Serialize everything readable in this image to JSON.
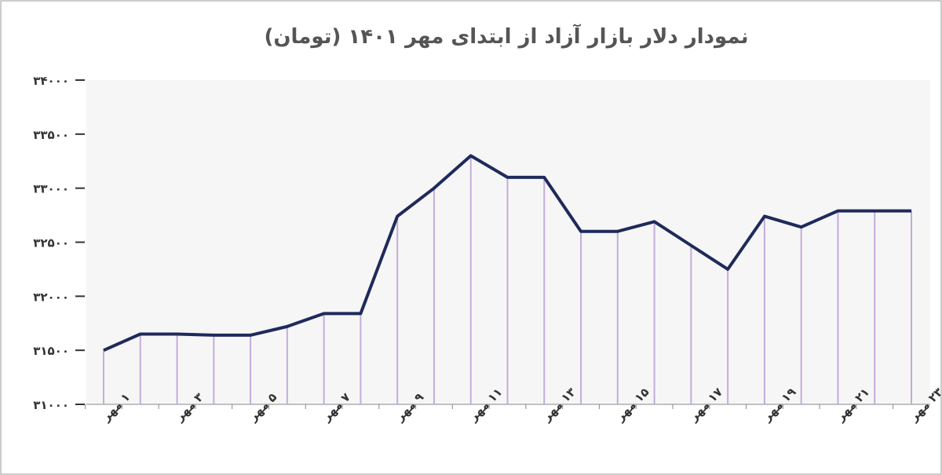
{
  "chart_data": {
    "type": "line",
    "title": "نمودار دلار بازار آزاد از ابتدای مهر ۱۴۰۱ (تومان)",
    "categories": [
      "۱ مهر",
      null,
      "۳ مهر",
      null,
      "۵ مهر",
      null,
      "۷ مهر",
      null,
      "۹ مهر",
      null,
      "۱۱ مهر",
      null,
      "۱۳ مهر",
      null,
      "۱۵ مهر",
      null,
      "۱۷ مهر",
      null,
      "۱۹ مهر",
      null,
      "۲۱ مهر",
      null,
      "۲۳ مهر"
    ],
    "values": [
      31500,
      31650,
      31650,
      31640,
      31640,
      31720,
      31840,
      31840,
      32740,
      33000,
      33300,
      33100,
      33100,
      32600,
      32600,
      32690,
      32470,
      32250,
      32740,
      32640,
      32790,
      32790,
      32790
    ],
    "color": "#1f2a5c",
    "drop_line_color": "#c4acd9",
    "ylim": [
      31000,
      34000
    ],
    "yticks": [
      {
        "value": 31000,
        "label": "۳۱۰۰۰"
      },
      {
        "value": 31500,
        "label": "۳۱۵۰۰"
      },
      {
        "value": 32000,
        "label": "۳۲۰۰۰"
      },
      {
        "value": 32500,
        "label": "۳۲۵۰۰"
      },
      {
        "value": 33000,
        "label": "۳۳۰۰۰"
      },
      {
        "value": 33500,
        "label": "۳۳۵۰۰"
      },
      {
        "value": 34000,
        "label": "۳۴۰۰۰"
      }
    ]
  }
}
